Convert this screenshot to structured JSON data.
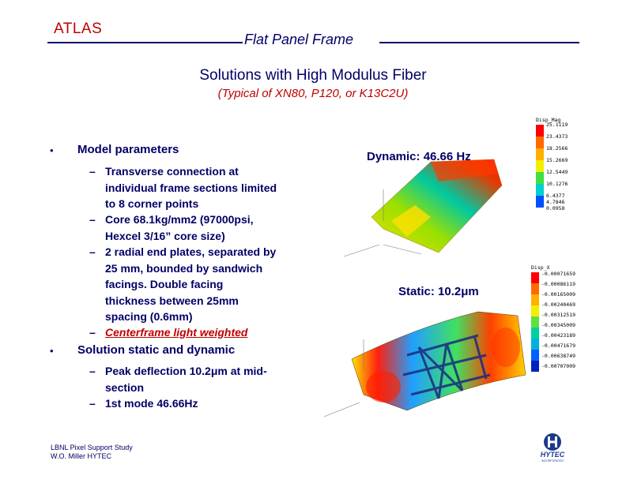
{
  "header": {
    "logo": "ATLAS",
    "title": "Flat Panel Frame"
  },
  "slide": {
    "subtitle": "Solutions with High Modulus Fiber",
    "subtitle2": "(Typical of XN80, P120, or K13C2U)"
  },
  "bullets": [
    {
      "label": "Model parameters",
      "subs": [
        [
          "Transverse connection at",
          "individual frame sections limited",
          "to 8 corner points"
        ],
        [
          "Core 68.1kg/mm2 (97000psi,",
          "Hexcel 3/16” core size)"
        ],
        [
          "2 radial end plates, separated by",
          "25 mm, bounded by sandwich",
          "facings.  Double facing",
          "thickness between 25mm",
          "spacing (0.6mm)"
        ],
        [
          "Centerframe light weighted"
        ]
      ]
    },
    {
      "label": "Solution static and dynamic",
      "subs": [
        [
          "Peak deflection 10.2μm at mid-",
          "section"
        ],
        [
          "1st mode 46.66Hz"
        ]
      ]
    }
  ],
  "results": {
    "dynamic": "Dynamic: 46.66 Hz",
    "static": "Static: 10.2μm"
  },
  "legend_top": {
    "title": "Disp_Mag",
    "values": [
      "25.1119",
      "23.4373",
      "18.2566",
      "15.2669",
      "12.5449",
      "10.1276",
      "6.4377",
      "4.7846",
      "0.0958"
    ]
  },
  "legend_bottom": {
    "title": "Disp_X",
    "values": [
      "-0.00071659",
      "-0.00086119",
      "-0.00165009",
      "-0.00240469",
      "-0.00312519",
      "-0.00345009",
      "-0.00423189",
      "-0.00471679",
      "-0.00638749",
      "-0.00707009"
    ]
  },
  "footer": {
    "line1": "LBNL Pixel Support Study",
    "line2": "W.O. Miller HYTEC"
  },
  "brand": {
    "name": "HYTEC",
    "tagline": "INCORPORATED"
  },
  "colors": {
    "navy": "#000066",
    "red": "#c00000"
  }
}
